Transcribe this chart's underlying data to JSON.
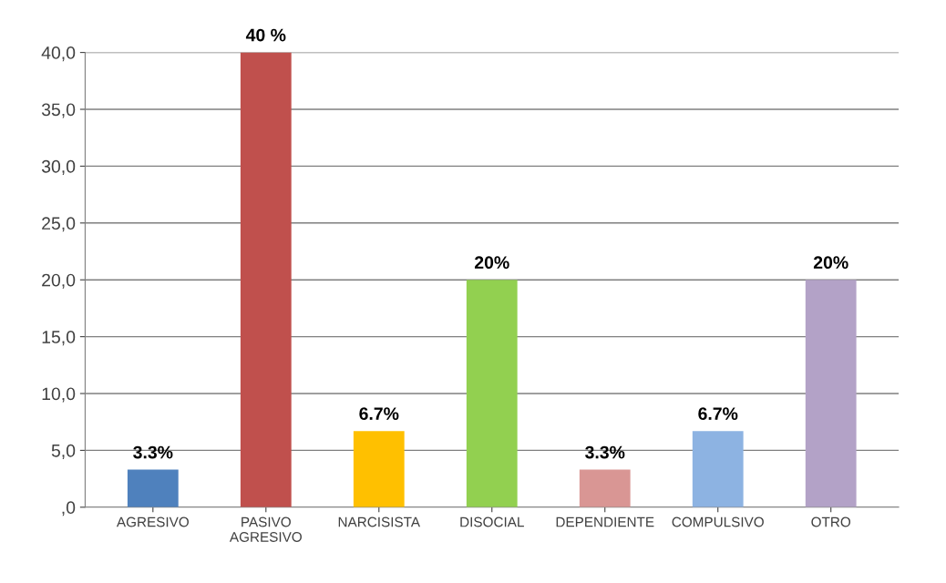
{
  "chart_data": {
    "type": "bar",
    "categories": [
      "AGRESIVO",
      "PASIVO\nAGRESIVO",
      "NARCISISTA",
      "DISOCIAL",
      "DEPENDIENTE",
      "COMPULSIVO",
      "OTRO"
    ],
    "values": [
      3.3,
      40,
      6.7,
      20,
      3.3,
      6.7,
      20
    ],
    "colors": [
      "#4f81bd",
      "#c0504d",
      "#ffc000",
      "#92d050",
      "#d99694",
      "#8db3e2",
      "#b3a2c7"
    ],
    "value_labels": [
      "3.3%",
      "40 %",
      "6.7%",
      "20%",
      "3.3%",
      "6.7%",
      "20%"
    ],
    "ylim": [
      0,
      40
    ],
    "yticks": [
      {
        "value": 0,
        "label": ",0"
      },
      {
        "value": 5,
        "label": "5,0"
      },
      {
        "value": 10,
        "label": "10,0"
      },
      {
        "value": 15,
        "label": "15,0"
      },
      {
        "value": 20,
        "label": "20,0"
      },
      {
        "value": 25,
        "label": "25,0"
      },
      {
        "value": 30,
        "label": "30,0"
      },
      {
        "value": 35,
        "label": "35,0"
      },
      {
        "value": 40,
        "label": "40,0"
      }
    ],
    "grid": "y"
  }
}
